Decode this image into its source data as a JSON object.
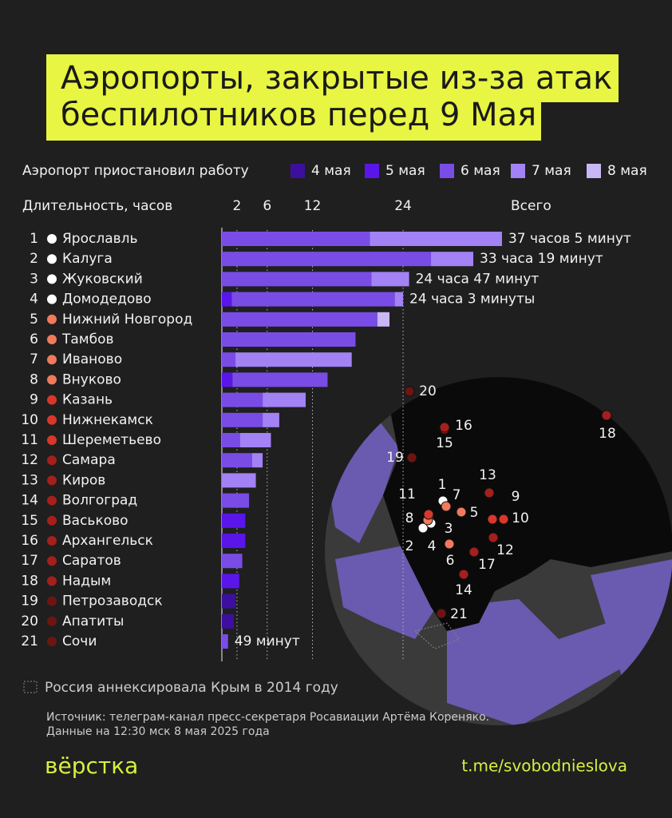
{
  "title": [
    "Аэропорты, закрытые из-за атак",
    "беспилотников перед 9 Мая"
  ],
  "chart_data": {
    "type": "bar",
    "orientation": "horizontal",
    "stacked": true,
    "legend_title": "Аэропорт приостановил работу",
    "x_label": "Длительность, часов",
    "total_header": "Всего",
    "ranks": [
      1,
      2,
      3,
      4,
      5,
      6,
      7,
      8,
      9,
      10,
      11,
      12,
      13,
      14,
      15,
      16,
      17,
      18,
      19,
      20,
      21
    ],
    "categories": [
      "Ярославль",
      "Калуга",
      "Жуковский",
      "Домодедово",
      "Нижний Новгород",
      "Тамбов",
      "Иваново",
      "Внуково",
      "Казань",
      "Нижнекамск",
      "Шереметьево",
      "Самара",
      "Киров",
      "Волгоград",
      "Васьково",
      "Архангельск",
      "Саратов",
      "Надым",
      "Петрозаводск",
      "Апатиты",
      "Сочи"
    ],
    "dot_colors": [
      "#ffffff",
      "#ffffff",
      "#ffffff",
      "#ffffff",
      "#f07a5c",
      "#f07a5c",
      "#f07a5c",
      "#f07a5c",
      "#d9372b",
      "#d9372b",
      "#d9372b",
      "#a51f1c",
      "#a51f1c",
      "#a51f1c",
      "#a51f1c",
      "#a51f1c",
      "#a51f1c",
      "#a51f1c",
      "#6d1512",
      "#6d1512",
      "#6d1512"
    ],
    "series": [
      {
        "name": "4 мая",
        "color": "#3d0f9e",
        "values": [
          null,
          null,
          null,
          null,
          null,
          null,
          null,
          null,
          null,
          null,
          null,
          null,
          null,
          null,
          null,
          null,
          null,
          null,
          1.8,
          1.6,
          null
        ]
      },
      {
        "name": "5 мая",
        "color": "#5a16ea",
        "values": [
          null,
          null,
          null,
          1.3,
          null,
          null,
          null,
          1.4,
          null,
          null,
          null,
          null,
          null,
          null,
          3.1,
          3.1,
          null,
          2.3,
          null,
          null,
          null
        ]
      },
      {
        "name": "6 мая",
        "color": "#7a4ce6",
        "values": [
          19.6,
          27.7,
          19.8,
          21.6,
          20.6,
          17.7,
          1.8,
          12.6,
          5.4,
          5.4,
          2.4,
          4.0,
          null,
          3.6,
          null,
          null,
          2.7,
          null,
          null,
          null,
          0.82
        ]
      },
      {
        "name": "7 мая",
        "color": "#a282f4",
        "values": [
          17.5,
          5.6,
          5.0,
          1.1,
          null,
          null,
          15.4,
          null,
          5.7,
          2.2,
          4.1,
          1.4,
          4.5,
          null,
          null,
          null,
          null,
          null,
          null,
          null,
          null
        ]
      },
      {
        "name": "8 мая",
        "color": "#c9b6f7",
        "values": [
          null,
          null,
          null,
          null,
          1.6,
          null,
          null,
          null,
          null,
          null,
          null,
          null,
          null,
          null,
          null,
          null,
          null,
          null,
          null,
          null,
          null
        ]
      }
    ],
    "total_labels": [
      "37 часов 5 минут",
      "33 часа 19 минут",
      "24 часа 47 минут",
      "24 часа 3 минуты",
      null,
      null,
      null,
      null,
      null,
      null,
      null,
      null,
      null,
      null,
      null,
      null,
      null,
      null,
      null,
      null,
      "49 минут"
    ],
    "xlim": [
      0,
      40
    ],
    "xticks": [
      2,
      6,
      12,
      24
    ],
    "grid": true
  },
  "map_note": "Россия аннексировала Крым в 2014 году",
  "source": [
    "Источник: телеграм-канал пресс-секретаря Росавиации Артёма Кореняко.",
    "Данные на 12:30 мск 8 мая 2025 года"
  ],
  "logo": "вёрстка",
  "link": "t.me/svobodnieslova"
}
